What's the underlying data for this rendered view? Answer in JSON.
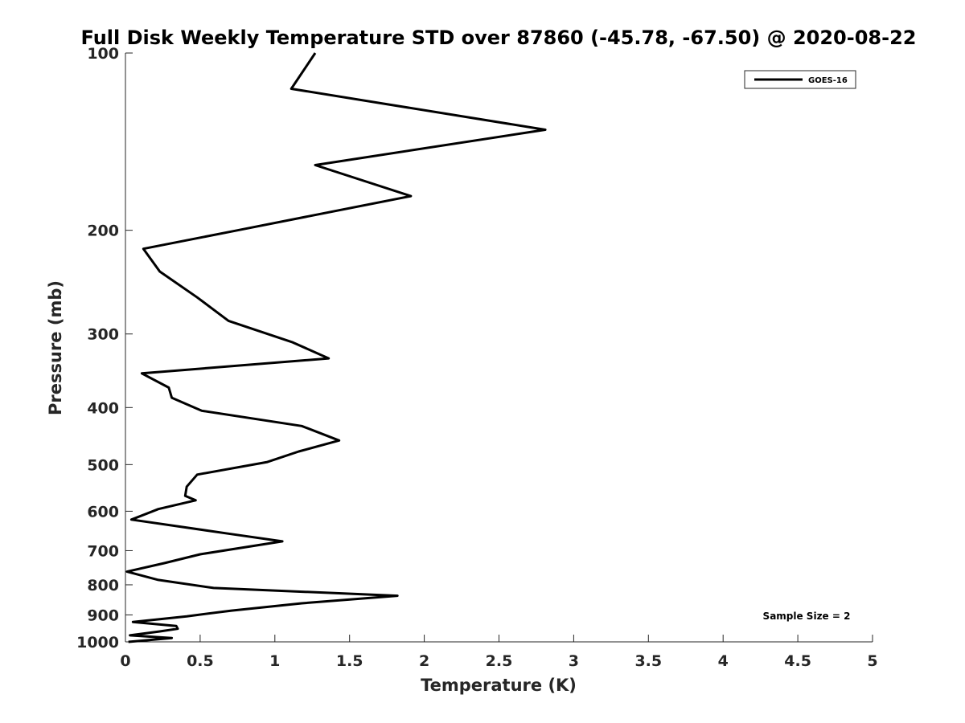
{
  "chart_data": {
    "type": "line",
    "title": "Full Disk Weekly Temperature STD over 87860 (-45.78, -67.50) @ 2020-08-22",
    "xlabel": "Temperature (K)",
    "ylabel": "Pressure (mb)",
    "xlim": [
      0,
      5
    ],
    "ylim": [
      100,
      1000
    ],
    "y_scale": "log",
    "y_reversed": true,
    "x_ticks": [
      0,
      0.5,
      1,
      1.5,
      2,
      2.5,
      3,
      3.5,
      4,
      4.5,
      5
    ],
    "x_tick_labels": [
      "0",
      "0.5",
      "1",
      "1.5",
      "2",
      "2.5",
      "3",
      "3.5",
      "4",
      "4.5",
      "5"
    ],
    "y_ticks": [
      100,
      200,
      300,
      400,
      500,
      600,
      700,
      800,
      900,
      1000
    ],
    "y_tick_labels": [
      "100",
      "200",
      "300",
      "400",
      "500",
      "600",
      "700",
      "800",
      "900",
      "1000"
    ],
    "legend_position": "top-right",
    "series": [
      {
        "name": "GOES-16",
        "color": "#000000",
        "x": [
          1.27,
          1.11,
          2.81,
          1.27,
          1.91,
          0.75,
          0.12,
          0.23,
          0.48,
          0.69,
          1.12,
          1.36,
          0.11,
          0.29,
          0.31,
          0.51,
          1.18,
          1.43,
          1.16,
          0.95,
          0.48,
          0.41,
          0.4,
          0.47,
          0.22,
          0.04,
          0.69,
          1.05,
          0.5,
          0.26,
          0.01,
          0.22,
          0.59,
          1.82,
          1.18,
          0.71,
          0.41,
          0.05,
          0.34,
          0.35,
          0.23,
          0.03,
          0.31,
          0.02
        ],
        "y": [
          100,
          115,
          135,
          155,
          175,
          200,
          215,
          235,
          260,
          285,
          310,
          330,
          350,
          370,
          385,
          405,
          430,
          455,
          475,
          495,
          520,
          545,
          565,
          575,
          595,
          620,
          655,
          675,
          710,
          735,
          760,
          785,
          810,
          835,
          860,
          885,
          905,
          925,
          940,
          950,
          960,
          975,
          985,
          1000
        ]
      }
    ],
    "annotation": "Sample Size = 2"
  }
}
